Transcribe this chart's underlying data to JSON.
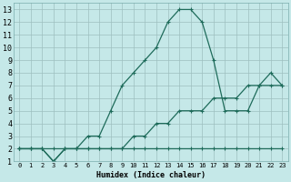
{
  "xlabel": "Humidex (Indice chaleur)",
  "bg_color": "#c5e8e8",
  "grid_color": "#9dbfbf",
  "line_color": "#1e6b5a",
  "xlim": [
    -0.5,
    23.5
  ],
  "ylim": [
    1,
    13.5
  ],
  "xticks": [
    0,
    1,
    2,
    3,
    4,
    5,
    6,
    7,
    8,
    9,
    10,
    11,
    12,
    13,
    14,
    15,
    16,
    17,
    18,
    19,
    20,
    21,
    22,
    23
  ],
  "yticks": [
    1,
    2,
    3,
    4,
    5,
    6,
    7,
    8,
    9,
    10,
    11,
    12,
    13
  ],
  "line_flat_x": [
    0,
    1,
    2,
    3,
    4,
    5,
    6,
    7,
    8,
    9,
    10,
    11,
    12,
    13,
    14,
    15,
    16,
    17,
    18,
    19,
    20,
    21,
    22,
    23
  ],
  "line_flat_y": [
    2,
    2,
    2,
    1,
    2,
    2,
    2,
    2,
    2,
    2,
    2,
    2,
    2,
    2,
    2,
    2,
    2,
    2,
    2,
    2,
    2,
    2,
    2,
    2
  ],
  "line_rise_x": [
    0,
    1,
    2,
    3,
    4,
    5,
    6,
    7,
    8,
    9,
    10,
    11,
    12,
    13,
    14,
    15,
    16,
    17,
    18,
    19,
    20,
    21,
    22,
    23
  ],
  "line_rise_y": [
    2,
    2,
    2,
    2,
    2,
    2,
    2,
    2,
    2,
    2,
    3,
    3,
    4,
    4,
    5,
    5,
    5,
    6,
    6,
    6,
    7,
    7,
    7,
    7
  ],
  "line_peak_x": [
    0,
    1,
    2,
    3,
    4,
    5,
    6,
    7,
    8,
    9,
    10,
    11,
    12,
    13,
    14,
    15,
    16,
    17,
    18,
    19,
    20,
    21,
    22,
    23
  ],
  "line_peak_y": [
    2,
    2,
    2,
    1,
    2,
    2,
    3,
    3,
    5,
    7,
    8,
    9,
    10,
    12,
    13,
    13,
    12,
    9,
    5,
    5,
    5,
    7,
    8,
    7
  ],
  "xlabel_fontsize": 6,
  "tick_fontsize_x": 5,
  "tick_fontsize_y": 6
}
